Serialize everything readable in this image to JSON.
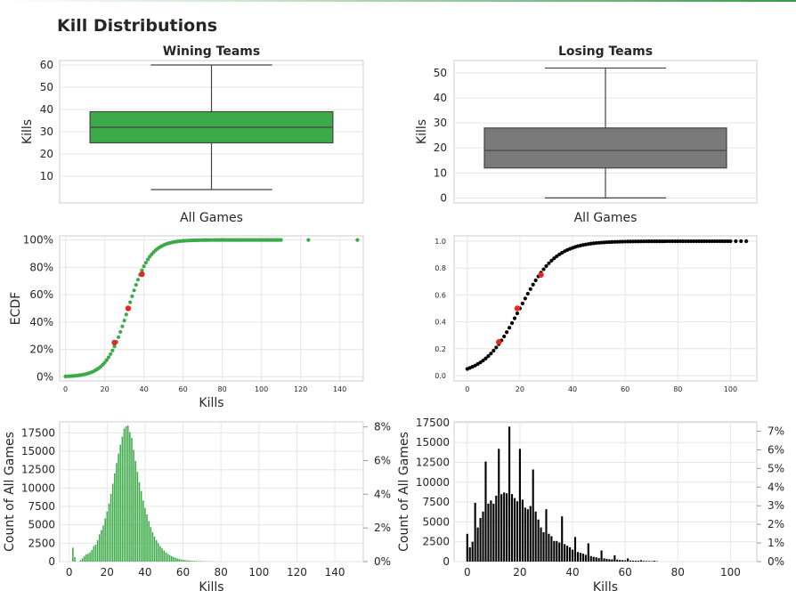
{
  "page_title": "Kill Distributions",
  "colors": {
    "green": "#3caa48",
    "gray": "#7a7a7a",
    "black": "#000000",
    "red": "#e8261d",
    "grid": "#e6e6e6",
    "frame": "#cccccc"
  },
  "chart_data": [
    {
      "id": "box_win",
      "type": "box",
      "title": "Wining Teams",
      "xlabel": "All Games",
      "ylabel": "Kills",
      "ylim": [
        -2,
        62
      ],
      "yticks": [
        10,
        20,
        30,
        40,
        50,
        60
      ],
      "whisker_low": 4,
      "q1": 25,
      "median": 32,
      "q3": 39,
      "whisker_high": 60,
      "color": "#3caa48",
      "grid": true
    },
    {
      "id": "box_lose",
      "type": "box",
      "title": "Losing Teams",
      "xlabel": "All Games",
      "ylabel": "Kills",
      "ylim": [
        -2,
        55
      ],
      "yticks": [
        0,
        10,
        20,
        30,
        40,
        50
      ],
      "whisker_low": 0,
      "q1": 12,
      "median": 19,
      "q3": 28,
      "whisker_high": 52,
      "color": "#7a7a7a",
      "grid": true
    },
    {
      "id": "ecdf_win",
      "type": "scatter",
      "xlabel": "Kills",
      "ylabel": "ECDF",
      "xlim": [
        -3,
        152
      ],
      "ylim": [
        -0.03,
        1.03
      ],
      "xticks": [
        0,
        20,
        40,
        60,
        80,
        100,
        120,
        140
      ],
      "ytick_values": [
        0,
        0.2,
        0.4,
        0.6,
        0.8,
        1.0
      ],
      "ytick_labels": [
        "0%",
        "20%",
        "40%",
        "60%",
        "80%",
        "100%"
      ],
      "curve": {
        "mean": 32,
        "sd": 9.5,
        "x_from": 0,
        "x_to": 110
      },
      "extra_points": [
        [
          124,
          1.0
        ],
        [
          149,
          1.0
        ]
      ],
      "quartile_points": [
        [
          25,
          0.25
        ],
        [
          32,
          0.5
        ],
        [
          39,
          0.75
        ]
      ],
      "color": "#3caa48",
      "grid": true
    },
    {
      "id": "ecdf_lose",
      "type": "scatter",
      "xlabel": "",
      "ylabel": "",
      "xlim": [
        -5,
        110
      ],
      "ylim": [
        -0.04,
        1.04
      ],
      "xticks": [
        0,
        20,
        40,
        60,
        80,
        100
      ],
      "ytick_values": [
        0,
        0.2,
        0.4,
        0.6,
        0.8,
        1.0
      ],
      "ytick_labels": [
        "0.0",
        "0.2",
        "0.4",
        "0.6",
        "0.8",
        "1.0"
      ],
      "curve": {
        "mean": 20,
        "sd": 11.5,
        "x_from": 0,
        "x_to": 100
      },
      "extra_points": [
        [
          102,
          1.0
        ],
        [
          104,
          1.0
        ],
        [
          106,
          1.0
        ]
      ],
      "quartile_points": [
        [
          12,
          0.25
        ],
        [
          19,
          0.5
        ],
        [
          28,
          0.75
        ]
      ],
      "color": "#000000",
      "grid": true
    },
    {
      "id": "hist_win",
      "type": "bar",
      "xlabel": "Kills",
      "ylabel": "Count of All Games",
      "xlim": [
        -5,
        155
      ],
      "ylim": [
        0,
        19000
      ],
      "xticks": [
        0,
        20,
        40,
        60,
        80,
        100,
        120,
        140
      ],
      "yticks": [
        0,
        2500,
        5000,
        7500,
        10000,
        12500,
        15000,
        17500
      ],
      "y2_ticks": [
        0,
        2,
        4,
        6,
        8
      ],
      "y2_labels": [
        "0%",
        "2%",
        "4%",
        "6%",
        "8%"
      ],
      "y2lim_percent": [
        0,
        8.3
      ],
      "x": [
        2,
        3,
        6,
        7,
        8,
        9,
        10,
        11,
        12,
        13,
        14,
        15,
        16,
        17,
        18,
        19,
        20,
        21,
        22,
        23,
        24,
        25,
        26,
        27,
        28,
        29,
        30,
        31,
        32,
        33,
        34,
        35,
        36,
        37,
        38,
        39,
        40,
        41,
        42,
        43,
        44,
        45,
        46,
        47,
        48,
        49,
        50,
        51,
        52,
        53,
        54,
        55,
        56,
        57,
        58,
        59,
        60,
        61,
        62,
        63,
        64,
        65,
        66,
        67,
        68,
        69,
        70,
        71,
        72,
        73,
        74,
        75,
        76,
        77,
        78,
        79,
        80
      ],
      "values": [
        1900,
        600,
        200,
        450,
        750,
        1000,
        1050,
        1250,
        1600,
        2100,
        2300,
        2900,
        3700,
        4300,
        4900,
        5900,
        6800,
        7900,
        9200,
        10600,
        12000,
        13400,
        14700,
        15900,
        17000,
        18100,
        18400,
        18500,
        17600,
        16800,
        15200,
        13700,
        12200,
        10800,
        9600,
        8300,
        7300,
        6400,
        5500,
        4700,
        4000,
        3400,
        2900,
        2500,
        2100,
        1800,
        1500,
        1250,
        1050,
        900,
        750,
        630,
        520,
        430,
        360,
        300,
        250,
        210,
        180,
        150,
        120,
        100,
        90,
        80,
        70,
        60,
        50,
        45,
        40,
        35,
        30,
        25,
        20,
        15,
        10,
        8,
        5
      ],
      "color": "#3caa48",
      "grid": true
    },
    {
      "id": "hist_lose",
      "type": "bar",
      "xlabel": "Kills",
      "ylabel": "Count of All Games",
      "xlim": [
        -5,
        110
      ],
      "ylim": [
        0,
        17600
      ],
      "xticks": [
        0,
        20,
        40,
        60,
        80,
        100
      ],
      "yticks": [
        0,
        2500,
        5000,
        7500,
        10000,
        12500,
        15000,
        17500
      ],
      "y2_ticks": [
        0,
        1,
        2,
        3,
        4,
        5,
        6,
        7
      ],
      "y2_labels": [
        "0%",
        "1%",
        "2%",
        "3%",
        "4%",
        "5%",
        "6%",
        "7%"
      ],
      "y2lim_percent": [
        0,
        7.5
      ],
      "x": [
        0,
        1,
        2,
        3,
        4,
        5,
        6,
        7,
        8,
        9,
        10,
        11,
        12,
        13,
        14,
        15,
        16,
        17,
        18,
        19,
        20,
        21,
        22,
        23,
        24,
        25,
        26,
        27,
        28,
        29,
        30,
        31,
        32,
        33,
        34,
        35,
        36,
        37,
        38,
        39,
        40,
        41,
        42,
        43,
        44,
        45,
        46,
        47,
        48,
        49,
        50,
        51,
        52,
        53,
        54,
        55,
        56,
        57,
        58,
        59,
        60,
        61,
        62,
        63,
        64,
        65,
        66,
        67,
        68,
        69,
        70,
        71,
        72
      ],
      "values": [
        3500,
        1800,
        2500,
        7400,
        4300,
        5500,
        6300,
        12600,
        7300,
        7700,
        7300,
        8300,
        14200,
        8500,
        8700,
        8600,
        17000,
        8500,
        8000,
        7600,
        14200,
        7800,
        6800,
        6600,
        7000,
        11600,
        6300,
        5300,
        4300,
        3700,
        6600,
        3500,
        3200,
        2600,
        2600,
        2400,
        5700,
        2200,
        2000,
        1800,
        1500,
        3100,
        1200,
        1100,
        1000,
        850,
        2300,
        700,
        600,
        550,
        450,
        1400,
        400,
        350,
        300,
        280,
        800,
        250,
        200,
        180,
        160,
        400,
        140,
        120,
        110,
        100,
        180,
        90,
        80,
        70,
        60,
        110,
        50
      ],
      "color": "#000000",
      "grid": true
    }
  ]
}
